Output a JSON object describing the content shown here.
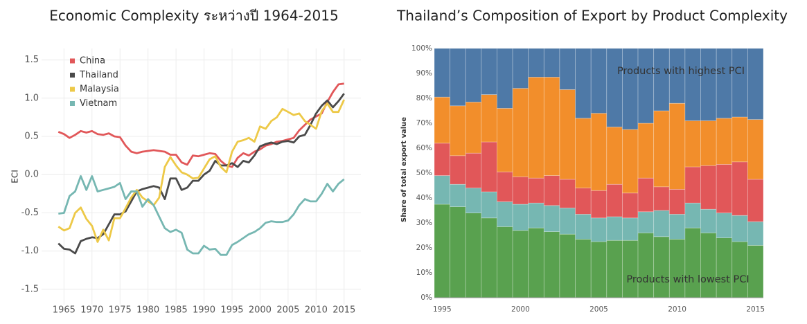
{
  "chart_data": [
    {
      "type": "line",
      "title": "Economic Complexity ระหว่างปี 1964-2015",
      "y_label": "ECI",
      "x": [
        1964,
        1965,
        1966,
        1967,
        1968,
        1969,
        1970,
        1971,
        1972,
        1973,
        1974,
        1975,
        1976,
        1977,
        1978,
        1979,
        1980,
        1981,
        1982,
        1983,
        1984,
        1985,
        1986,
        1987,
        1988,
        1989,
        1990,
        1991,
        1992,
        1993,
        1994,
        1995,
        1996,
        1997,
        1998,
        1999,
        2000,
        2001,
        2002,
        2003,
        2004,
        2005,
        2006,
        2007,
        2008,
        2009,
        2010,
        2011,
        2012,
        2013,
        2014,
        2015
      ],
      "series": [
        {
          "name": "China",
          "color": "#e15759",
          "values": [
            0.56,
            0.53,
            0.48,
            0.52,
            0.57,
            0.55,
            0.57,
            0.53,
            0.52,
            0.54,
            0.5,
            0.49,
            0.38,
            0.3,
            0.28,
            0.3,
            0.31,
            0.32,
            0.31,
            0.3,
            0.26,
            0.26,
            0.16,
            0.13,
            0.25,
            0.24,
            0.26,
            0.28,
            0.27,
            0.18,
            0.12,
            0.1,
            0.22,
            0.28,
            0.25,
            0.3,
            0.33,
            0.38,
            0.4,
            0.43,
            0.44,
            0.46,
            0.48,
            0.58,
            0.65,
            0.72,
            0.76,
            0.8,
            0.95,
            1.08,
            1.18,
            1.19
          ]
        },
        {
          "name": "Thailand",
          "color": "#4a4a4a",
          "values": [
            -0.9,
            -0.97,
            -0.98,
            -1.03,
            -0.87,
            -0.84,
            -0.82,
            -0.83,
            -0.78,
            -0.65,
            -0.52,
            -0.52,
            -0.48,
            -0.35,
            -0.22,
            -0.19,
            -0.17,
            -0.15,
            -0.17,
            -0.32,
            -0.05,
            -0.05,
            -0.2,
            -0.17,
            -0.08,
            -0.08,
            0.0,
            0.05,
            0.18,
            0.12,
            0.12,
            0.15,
            0.1,
            0.18,
            0.16,
            0.25,
            0.37,
            0.4,
            0.42,
            0.4,
            0.43,
            0.44,
            0.42,
            0.5,
            0.52,
            0.65,
            0.8,
            0.9,
            0.97,
            0.88,
            0.96,
            1.06
          ]
        },
        {
          "name": "Malaysia",
          "color": "#edc948",
          "values": [
            -0.68,
            -0.73,
            -0.7,
            -0.5,
            -0.43,
            -0.58,
            -0.67,
            -0.88,
            -0.72,
            -0.86,
            -0.57,
            -0.57,
            -0.44,
            -0.3,
            -0.2,
            -0.3,
            -0.35,
            -0.4,
            -0.3,
            0.1,
            0.23,
            0.12,
            0.03,
            0.0,
            -0.05,
            -0.04,
            0.08,
            0.2,
            0.24,
            0.1,
            0.03,
            0.3,
            0.43,
            0.45,
            0.48,
            0.43,
            0.63,
            0.6,
            0.7,
            0.75,
            0.86,
            0.82,
            0.78,
            0.8,
            0.7,
            0.65,
            0.6,
            0.83,
            0.93,
            0.82,
            0.82,
            0.98
          ]
        },
        {
          "name": "Vietnam",
          "color": "#76b7b2",
          "values": [
            -0.51,
            -0.5,
            -0.28,
            -0.22,
            -0.02,
            -0.2,
            -0.02,
            -0.22,
            -0.2,
            -0.18,
            -0.16,
            -0.11,
            -0.32,
            -0.22,
            -0.22,
            -0.42,
            -0.32,
            -0.4,
            -0.55,
            -0.7,
            -0.75,
            -0.72,
            -0.76,
            -0.98,
            -1.03,
            -1.03,
            -0.93,
            -0.98,
            -0.97,
            -1.05,
            -1.05,
            -0.92,
            -0.88,
            -0.83,
            -0.78,
            -0.75,
            -0.7,
            -0.63,
            -0.61,
            -0.62,
            -0.62,
            -0.6,
            -0.52,
            -0.4,
            -0.32,
            -0.35,
            -0.35,
            -0.25,
            -0.12,
            -0.22,
            -0.12,
            -0.06
          ]
        }
      ],
      "xlim": [
        1961,
        2018
      ],
      "xticks": [
        1965,
        1970,
        1975,
        1980,
        1985,
        1990,
        1995,
        2000,
        2005,
        2010,
        2015
      ],
      "ylim": [
        -1.7,
        1.65
      ],
      "yticks": [
        {
          "value": -1.5,
          "label": "-1.5"
        },
        {
          "value": -1,
          "label": "-1.0"
        },
        -0.5,
        {
          "value": 0,
          "label": "0.0"
        },
        0.5,
        {
          "value": 1,
          "label": "1.0"
        },
        1.5
      ],
      "grid": true,
      "legend": "top-left"
    },
    {
      "type": "bar",
      "stacked": true,
      "title": "Thailand’s Composition of Export by Product Complexity",
      "y_label": "Share of total export value",
      "categories": [
        "1995",
        null,
        null,
        null,
        null,
        "2000",
        null,
        null,
        null,
        null,
        "2005",
        null,
        null,
        null,
        null,
        "2010",
        null,
        null,
        null,
        null,
        "2015"
      ],
      "series": [
        {
          "color": "#59a14f",
          "values": [
            37.5,
            36.5,
            34,
            32,
            28.5,
            27,
            28,
            26.5,
            25.5,
            23.5,
            22.5,
            23,
            23,
            26,
            24.5,
            23.5,
            28,
            26,
            24,
            22.5,
            21
          ]
        },
        {
          "color": "#76b7b2",
          "values": [
            11.5,
            9,
            10,
            10.5,
            10,
            10.5,
            10,
            10.5,
            10.5,
            10,
            9.5,
            9.5,
            9,
            8.5,
            10.5,
            10,
            10,
            9.5,
            10,
            10.5,
            9.5
          ]
        },
        {
          "color": "#e15759",
          "values": [
            13,
            11.5,
            14,
            20,
            12,
            11,
            10,
            12,
            11.5,
            10.5,
            11,
            13,
            10,
            13.5,
            9.5,
            10,
            14.5,
            17.5,
            19.5,
            21.5,
            17
          ]
        },
        {
          "color": "#f28e2b",
          "values": [
            18.5,
            20,
            20.5,
            19,
            25.5,
            35.5,
            40.5,
            39.5,
            36,
            28,
            31,
            23,
            25.5,
            22,
            30.5,
            34.5,
            18.5,
            18,
            18.5,
            18,
            24
          ]
        },
        {
          "color": "#4e79a7",
          "values": [
            19.5,
            23,
            21.5,
            18.5,
            24,
            16,
            11.5,
            11.5,
            16.5,
            28,
            26,
            31.5,
            32.5,
            30,
            25,
            22,
            29,
            29,
            28,
            27.5,
            28.5
          ]
        }
      ],
      "ylim": [
        0,
        100
      ],
      "yticks": [
        {
          "value": 0,
          "label": "0%"
        },
        {
          "value": 10,
          "label": "10%"
        },
        {
          "value": 20,
          "label": "20%"
        },
        {
          "value": 30,
          "label": "30%"
        },
        {
          "value": 40,
          "label": "40%"
        },
        {
          "value": 50,
          "label": "50%"
        },
        {
          "value": 60,
          "label": "60%"
        },
        {
          "value": 70,
          "label": "70%"
        },
        {
          "value": 80,
          "label": "80%"
        },
        {
          "value": 90,
          "label": "90%"
        },
        {
          "value": 100,
          "label": "100%"
        }
      ],
      "grid": true,
      "annotations": [
        "Products with highest PCI",
        "Products with lowest PCI"
      ]
    }
  ]
}
